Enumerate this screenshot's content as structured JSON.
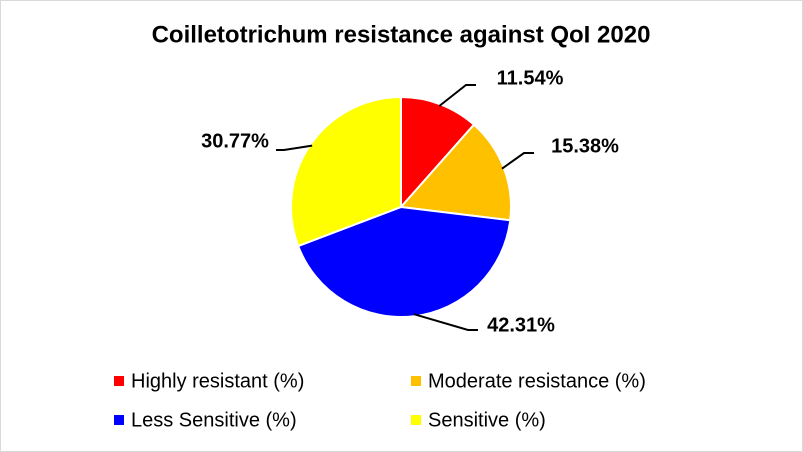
{
  "chart_data": {
    "type": "pie",
    "title": "Coilletotrichum resistance against QoI 2020",
    "categories": [
      "Highly resistant (%)",
      "Moderate resistance (%)",
      "Less Sensitive (%)",
      "Sensitive (%)"
    ],
    "values": [
      11.54,
      15.38,
      42.31,
      30.77
    ],
    "value_labels": [
      "11.54%",
      "15.38%",
      "42.31%",
      "30.77%"
    ],
    "colors": [
      "#ff0000",
      "#ffc000",
      "#0000ff",
      "#ffff00"
    ]
  }
}
